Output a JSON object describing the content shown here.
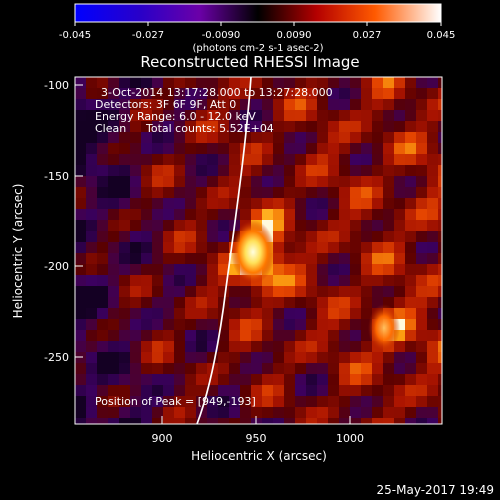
{
  "chart_data": {
    "type": "heatmap",
    "title": "Reconstructed RHESSI Image",
    "xlabel": "Heliocentric X (arcsec)",
    "ylabel": "Heliocentric Y (arcsec)",
    "x_ticks": [
      "900",
      "950",
      "1000"
    ],
    "y_ticks": [
      "-100",
      "-150",
      "-200",
      "-250"
    ],
    "xlim": [
      852,
      1042
    ],
    "ylim": [
      -287,
      -95
    ],
    "colorbar": {
      "label": "(photons cm-2 s-1 asec-2)",
      "range": [
        -0.045,
        0.045
      ],
      "ticks": [
        "-0.045",
        "-0.027",
        "-0.0090",
        "0.0090",
        "0.027",
        "0.045"
      ]
    },
    "annotations": {
      "time_range": "3-Oct-2014 13:17:28.000 to 13:27:28.000",
      "detectors": "Detectors: 3F 6F 9F, Att 0",
      "energy_range": "Energy Range: 6.0 - 12.0 keV",
      "clean": "Clean",
      "total_counts": "Total counts: 5.52E+04",
      "peak": "Position of Peak = [949,-193]"
    },
    "peak_position": [
      949,
      -193
    ],
    "limb_curve_points": [
      [
        950,
        -95
      ],
      [
        944,
        -150
      ],
      [
        937,
        -200
      ],
      [
        926,
        -250
      ],
      [
        912,
        -287
      ]
    ]
  },
  "footer": {
    "date": "25-May-2017 19:49"
  }
}
